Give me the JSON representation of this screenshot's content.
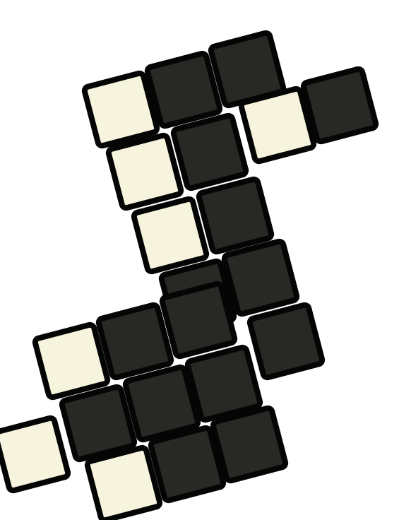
{
  "colors": {
    "dark": "#282825",
    "light": "#f7f4de",
    "outline": "#050505",
    "background": "#ffffff"
  },
  "grid": {
    "rows": 7,
    "cols": 6,
    "cells": [
      [
        null,
        null,
        null,
        null,
        null,
        "dark"
      ],
      [
        null,
        "light",
        "dark",
        "dark",
        "light",
        "dark"
      ],
      [
        null,
        "light",
        "dark",
        null,
        null,
        null
      ],
      [
        null,
        "light",
        "dark",
        null,
        null,
        null
      ],
      [
        null,
        "dark",
        "dark",
        null,
        null,
        null
      ],
      [
        "light",
        "dark",
        "dark",
        null,
        null,
        null
      ],
      [
        "light",
        "dark",
        "dark",
        null,
        null,
        null
      ]
    ],
    "extra": [
      {
        "row": 0,
        "col": 3,
        "color": "dark"
      },
      {
        "row": 0,
        "col": 4,
        "color": "dark"
      },
      {
        "row": 3,
        "col": 2,
        "color": "dark"
      },
      {
        "row": 4,
        "col": 2,
        "color": "dark"
      },
      {
        "row": 4,
        "col": 3,
        "color": "dark"
      },
      {
        "row": 5,
        "col": 0,
        "color": "light"
      },
      {
        "row": 5,
        "col": 1,
        "color": "dark"
      },
      {
        "row": 6,
        "col": 0,
        "color": "light"
      },
      {
        "row": 6,
        "col": 1,
        "color": "dark"
      },
      {
        "row": 7,
        "col": 0,
        "color": "light"
      },
      {
        "row": 7,
        "col": 1,
        "color": "dark"
      },
      {
        "row": 7,
        "col": 2,
        "color": "dark"
      }
    ]
  }
}
